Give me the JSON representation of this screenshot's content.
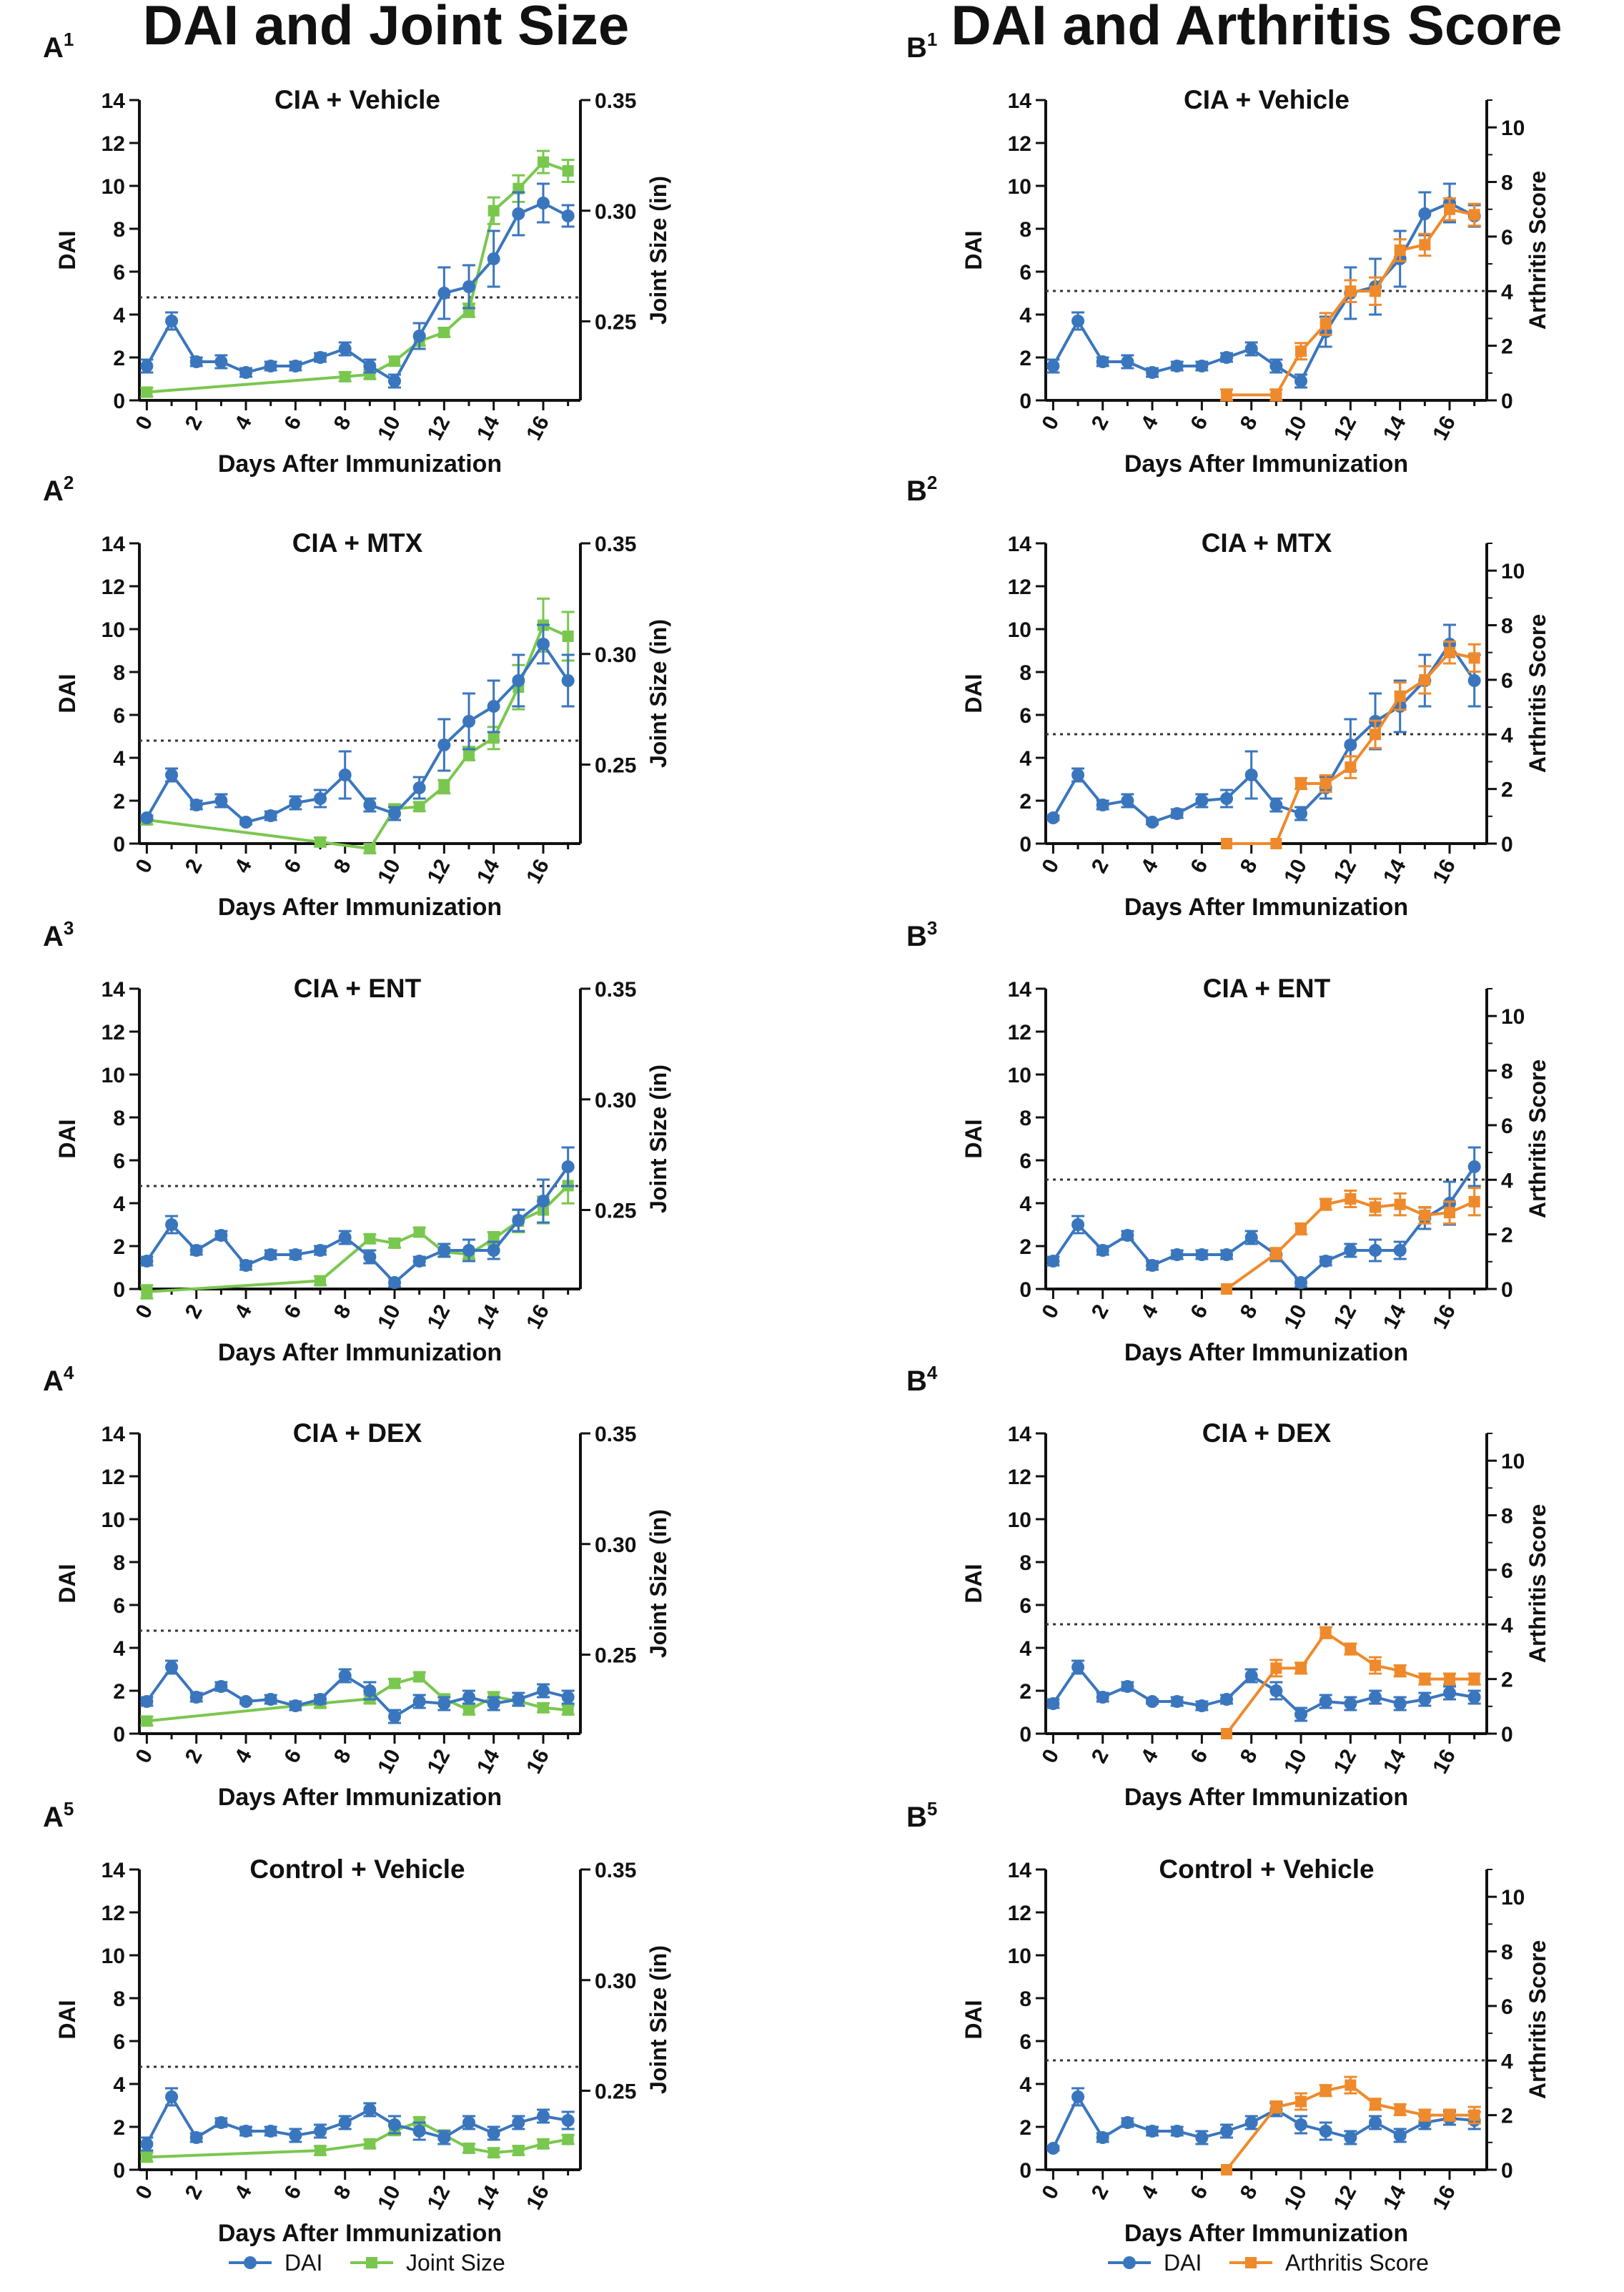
{
  "figure": {
    "left_title": "DAI and Joint Size",
    "right_title": "DAI and Arthritis Score",
    "xlabel": "Days After Immunization",
    "ylabel_left": "DAI",
    "ylabel_right_a": "Joint Size (in)",
    "ylabel_right_b": "Arthritis Score",
    "x_ticks": [
      "0",
      "2",
      "4",
      "6",
      "8",
      "10",
      "12",
      "14",
      "16"
    ],
    "dai_ticks": [
      "0",
      "2",
      "4",
      "6",
      "8",
      "10",
      "12",
      "14"
    ],
    "joint_ticks": [
      "0.25",
      "0.30",
      "0.35"
    ],
    "score_ticks": [
      "0",
      "2",
      "4",
      "6",
      "8",
      "10"
    ],
    "legend_a": [
      "DAI",
      "Joint Size"
    ],
    "legend_b": [
      "DAI",
      "Arthritis Score"
    ],
    "colors": {
      "dai": "#3a76bd",
      "joint": "#7ac74f",
      "score": "#ee8a2c",
      "axis": "#111111"
    }
  },
  "chart_data": [
    {
      "type": "line",
      "panel": "A",
      "label_letter": "A",
      "label_sup": "1",
      "title": "CIA + Vehicle",
      "threshold_dai": 4.8,
      "dai": {
        "x": [
          0,
          1,
          2,
          3,
          4,
          5,
          6,
          7,
          8,
          9,
          10,
          11,
          12,
          13,
          14,
          15,
          16,
          17
        ],
        "y": [
          1.6,
          3.7,
          1.8,
          1.8,
          1.3,
          1.6,
          1.6,
          2.0,
          2.4,
          1.6,
          0.9,
          3.0,
          5.0,
          5.3,
          6.6,
          8.7,
          9.2,
          8.6
        ],
        "err": [
          0.3,
          0.4,
          0.2,
          0.3,
          0.2,
          0.2,
          0.2,
          0.2,
          0.3,
          0.3,
          0.3,
          0.6,
          1.2,
          1.0,
          1.3,
          1.0,
          0.9,
          0.5
        ]
      },
      "second": {
        "kind": "joint",
        "x": [
          0,
          8,
          9,
          10,
          11,
          12,
          13,
          14,
          15,
          16,
          17
        ],
        "y": [
          0.218,
          0.225,
          0.226,
          0.232,
          0.241,
          0.245,
          0.255,
          0.3,
          0.31,
          0.322,
          0.318
        ],
        "err": [
          0.002,
          0.002,
          0.002,
          0.002,
          0.002,
          0.002,
          0.003,
          0.006,
          0.006,
          0.005,
          0.005
        ]
      }
    },
    {
      "type": "line",
      "panel": "A",
      "label_letter": "A",
      "label_sup": "2",
      "title": "CIA + MTX",
      "threshold_dai": 4.8,
      "dai": {
        "x": [
          0,
          1,
          2,
          3,
          4,
          5,
          6,
          7,
          8,
          9,
          10,
          11,
          12,
          13,
          14,
          15,
          16,
          17
        ],
        "y": [
          1.2,
          3.2,
          1.8,
          2.0,
          1.0,
          1.3,
          1.9,
          2.1,
          3.2,
          1.8,
          1.4,
          2.6,
          4.6,
          5.7,
          6.4,
          7.6,
          9.3,
          7.6
        ],
        "err": [
          0.1,
          0.3,
          0.2,
          0.3,
          0.1,
          0.2,
          0.3,
          0.4,
          1.1,
          0.3,
          0.3,
          0.5,
          1.2,
          1.3,
          1.2,
          1.2,
          0.9,
          1.2
        ]
      },
      "second": {
        "kind": "joint",
        "x": [
          0,
          7,
          9,
          10,
          11,
          12,
          13,
          14,
          15,
          16,
          17
        ],
        "y": [
          0.225,
          0.215,
          0.212,
          0.23,
          0.231,
          0.24,
          0.255,
          0.262,
          0.285,
          0.313,
          0.308
        ],
        "err": [
          0.002,
          0.002,
          0.002,
          0.002,
          0.002,
          0.003,
          0.003,
          0.005,
          0.01,
          0.012,
          0.011
        ]
      }
    },
    {
      "type": "line",
      "panel": "A",
      "label_letter": "A",
      "label_sup": "3",
      "title": "CIA + ENT",
      "threshold_dai": 4.8,
      "dai": {
        "x": [
          0,
          1,
          2,
          3,
          4,
          5,
          6,
          7,
          8,
          9,
          10,
          11,
          12,
          13,
          14,
          15,
          16,
          17
        ],
        "y": [
          1.3,
          3.0,
          1.8,
          2.5,
          1.1,
          1.6,
          1.6,
          1.8,
          2.4,
          1.5,
          0.3,
          1.3,
          1.8,
          1.8,
          1.8,
          3.2,
          4.1,
          5.7
        ],
        "err": [
          0.2,
          0.4,
          0.2,
          0.2,
          0.2,
          0.2,
          0.2,
          0.2,
          0.3,
          0.3,
          0.2,
          0.2,
          0.3,
          0.5,
          0.4,
          0.5,
          1.0,
          0.9
        ]
      },
      "second": {
        "kind": "joint",
        "x": [
          0,
          7,
          9,
          10,
          11,
          12,
          13,
          14,
          15,
          16,
          17
        ],
        "y": [
          0.213,
          0.218,
          0.237,
          0.235,
          0.24,
          0.231,
          0.23,
          0.237,
          0.245,
          0.25,
          0.261
        ],
        "err": [
          0.003,
          0.002,
          0.002,
          0.002,
          0.002,
          0.002,
          0.002,
          0.003,
          0.005,
          0.006,
          0.008
        ]
      }
    },
    {
      "type": "line",
      "panel": "A",
      "label_letter": "A",
      "label_sup": "4",
      "title": "CIA + DEX",
      "threshold_dai": 4.8,
      "dai": {
        "x": [
          0,
          1,
          2,
          3,
          4,
          5,
          6,
          7,
          8,
          9,
          10,
          11,
          12,
          13,
          14,
          15,
          16,
          17
        ],
        "y": [
          1.5,
          3.1,
          1.7,
          2.2,
          1.5,
          1.6,
          1.3,
          1.6,
          2.7,
          2.0,
          0.8,
          1.5,
          1.4,
          1.7,
          1.4,
          1.6,
          2.0,
          1.7
        ],
        "err": [
          0.2,
          0.3,
          0.2,
          0.2,
          0.1,
          0.2,
          0.2,
          0.2,
          0.3,
          0.4,
          0.3,
          0.3,
          0.3,
          0.3,
          0.3,
          0.3,
          0.3,
          0.3
        ]
      },
      "second": {
        "kind": "joint",
        "x": [
          0,
          7,
          9,
          10,
          11,
          12,
          13,
          14,
          15,
          16,
          17
        ],
        "y": [
          0.22,
          0.228,
          0.23,
          0.237,
          0.24,
          0.23,
          0.225,
          0.231,
          0.229,
          0.226,
          0.225
        ],
        "err": [
          0.002,
          0.002,
          0.002,
          0.002,
          0.002,
          0.002,
          0.002,
          0.002,
          0.002,
          0.002,
          0.002
        ]
      }
    },
    {
      "type": "line",
      "panel": "A",
      "label_letter": "A",
      "label_sup": "5",
      "title": "Control + Vehicle",
      "threshold_dai": 4.8,
      "dai": {
        "x": [
          0,
          1,
          2,
          3,
          4,
          5,
          6,
          7,
          8,
          9,
          10,
          11,
          12,
          13,
          14,
          15,
          16,
          17
        ],
        "y": [
          1.2,
          3.4,
          1.5,
          2.2,
          1.8,
          1.8,
          1.6,
          1.8,
          2.2,
          2.8,
          2.1,
          1.8,
          1.5,
          2.2,
          1.7,
          2.2,
          2.5,
          2.3
        ],
        "err": [
          0.3,
          0.4,
          0.2,
          0.2,
          0.2,
          0.2,
          0.3,
          0.3,
          0.3,
          0.3,
          0.4,
          0.4,
          0.3,
          0.3,
          0.3,
          0.3,
          0.3,
          0.4
        ]
      },
      "second": {
        "kind": "joint",
        "x": [
          0,
          7,
          9,
          10,
          11,
          12,
          13,
          14,
          15,
          16,
          17
        ],
        "y": [
          0.22,
          0.223,
          0.226,
          0.232,
          0.236,
          0.23,
          0.224,
          0.222,
          0.223,
          0.226,
          0.228
        ],
        "err": [
          0.002,
          0.002,
          0.002,
          0.002,
          0.002,
          0.002,
          0.002,
          0.002,
          0.002,
          0.002,
          0.002
        ]
      }
    },
    {
      "type": "line",
      "panel": "B",
      "label_letter": "B",
      "label_sup": "1",
      "title": "CIA + Vehicle",
      "threshold_dai": 5.1,
      "dai": {
        "x": [
          0,
          1,
          2,
          3,
          4,
          5,
          6,
          7,
          8,
          9,
          10,
          11,
          12,
          13,
          14,
          15,
          16,
          17
        ],
        "y": [
          1.6,
          3.7,
          1.8,
          1.8,
          1.3,
          1.6,
          1.6,
          2.0,
          2.4,
          1.6,
          0.9,
          3.2,
          5.0,
          5.3,
          6.6,
          8.7,
          9.2,
          8.6
        ],
        "err": [
          0.3,
          0.4,
          0.2,
          0.3,
          0.2,
          0.2,
          0.2,
          0.2,
          0.3,
          0.3,
          0.3,
          0.7,
          1.2,
          1.3,
          1.3,
          1.0,
          0.9,
          0.5
        ]
      },
      "second": {
        "kind": "score",
        "x": [
          7,
          9,
          10,
          11,
          12,
          13,
          14,
          15,
          16,
          17
        ],
        "y": [
          0.2,
          0.2,
          1.8,
          2.8,
          4.0,
          4.0,
          5.5,
          5.7,
          7.0,
          6.8
        ],
        "err": [
          0.2,
          0.2,
          0.3,
          0.4,
          0.4,
          0.5,
          0.4,
          0.4,
          0.4,
          0.4
        ]
      }
    },
    {
      "type": "line",
      "panel": "B",
      "label_letter": "B",
      "label_sup": "2",
      "title": "CIA + MTX",
      "threshold_dai": 5.1,
      "dai": {
        "x": [
          0,
          1,
          2,
          3,
          4,
          5,
          6,
          7,
          8,
          9,
          10,
          11,
          12,
          13,
          14,
          15,
          16,
          17
        ],
        "y": [
          1.2,
          3.2,
          1.8,
          2.0,
          1.0,
          1.4,
          2.0,
          2.1,
          3.2,
          1.8,
          1.4,
          2.6,
          4.6,
          5.7,
          6.4,
          7.6,
          9.3,
          7.6
        ],
        "err": [
          0.1,
          0.3,
          0.2,
          0.3,
          0.1,
          0.2,
          0.3,
          0.4,
          1.1,
          0.3,
          0.3,
          0.5,
          1.2,
          1.3,
          1.2,
          1.2,
          0.9,
          1.2
        ]
      },
      "second": {
        "kind": "score",
        "x": [
          7,
          9,
          10,
          11,
          12,
          13,
          14,
          15,
          16,
          17
        ],
        "y": [
          0,
          0,
          2.2,
          2.2,
          2.8,
          4.0,
          5.4,
          6.0,
          7.0,
          6.8
        ],
        "err": [
          0,
          0,
          0.2,
          0.3,
          0.4,
          0.5,
          0.5,
          0.5,
          0.4,
          0.5
        ]
      }
    },
    {
      "type": "line",
      "panel": "B",
      "label_letter": "B",
      "label_sup": "3",
      "title": "CIA + ENT",
      "threshold_dai": 5.1,
      "dai": {
        "x": [
          0,
          1,
          2,
          3,
          4,
          5,
          6,
          7,
          8,
          9,
          10,
          11,
          12,
          13,
          14,
          15,
          16,
          17
        ],
        "y": [
          1.3,
          3.0,
          1.8,
          2.5,
          1.1,
          1.6,
          1.6,
          1.6,
          2.4,
          1.6,
          0.3,
          1.3,
          1.8,
          1.8,
          1.8,
          3.3,
          4.0,
          5.7
        ],
        "err": [
          0.2,
          0.4,
          0.2,
          0.2,
          0.2,
          0.2,
          0.2,
          0.2,
          0.3,
          0.3,
          0.2,
          0.2,
          0.3,
          0.5,
          0.4,
          0.5,
          1.0,
          0.9
        ]
      },
      "second": {
        "kind": "score",
        "x": [
          7,
          9,
          10,
          11,
          12,
          13,
          14,
          15,
          16,
          17
        ],
        "y": [
          0,
          1.3,
          2.2,
          3.1,
          3.3,
          3.0,
          3.1,
          2.7,
          2.8,
          3.2
        ],
        "err": [
          0,
          0.2,
          0.2,
          0.2,
          0.3,
          0.3,
          0.4,
          0.3,
          0.4,
          0.5
        ]
      }
    },
    {
      "type": "line",
      "panel": "B",
      "label_letter": "B",
      "label_sup": "4",
      "title": "CIA + DEX",
      "threshold_dai": 5.1,
      "dai": {
        "x": [
          0,
          1,
          2,
          3,
          4,
          5,
          6,
          7,
          8,
          9,
          10,
          11,
          12,
          13,
          14,
          15,
          16,
          17
        ],
        "y": [
          1.4,
          3.1,
          1.7,
          2.2,
          1.5,
          1.5,
          1.3,
          1.6,
          2.7,
          2.0,
          0.9,
          1.5,
          1.4,
          1.7,
          1.4,
          1.6,
          1.9,
          1.7
        ],
        "err": [
          0.2,
          0.3,
          0.2,
          0.2,
          0.1,
          0.2,
          0.2,
          0.2,
          0.3,
          0.4,
          0.3,
          0.3,
          0.3,
          0.3,
          0.3,
          0.3,
          0.3,
          0.3
        ]
      },
      "second": {
        "kind": "score",
        "x": [
          7,
          9,
          10,
          11,
          12,
          13,
          14,
          15,
          16,
          17
        ],
        "y": [
          0,
          2.4,
          2.4,
          3.7,
          3.1,
          2.5,
          2.3,
          2.0,
          2.0,
          2.0
        ],
        "err": [
          0,
          0.3,
          0.2,
          0.2,
          0.2,
          0.3,
          0.2,
          0.2,
          0.2,
          0.2
        ]
      }
    },
    {
      "type": "line",
      "panel": "B",
      "label_letter": "B",
      "label_sup": "5",
      "title": "Control + Vehicle",
      "threshold_dai": 5.1,
      "dai": {
        "x": [
          0,
          1,
          2,
          3,
          4,
          5,
          6,
          7,
          8,
          9,
          10,
          11,
          12,
          13,
          14,
          15,
          16,
          17
        ],
        "y": [
          1.0,
          3.4,
          1.5,
          2.2,
          1.8,
          1.8,
          1.5,
          1.8,
          2.2,
          2.8,
          2.1,
          1.8,
          1.5,
          2.2,
          1.6,
          2.2,
          2.4,
          2.3
        ],
        "err": [
          0.1,
          0.4,
          0.2,
          0.2,
          0.2,
          0.2,
          0.3,
          0.3,
          0.3,
          0.3,
          0.4,
          0.4,
          0.3,
          0.3,
          0.3,
          0.3,
          0.3,
          0.4
        ]
      },
      "second": {
        "kind": "score",
        "x": [
          7,
          9,
          10,
          11,
          12,
          13,
          14,
          15,
          16,
          17
        ],
        "y": [
          0,
          2.3,
          2.5,
          2.9,
          3.1,
          2.4,
          2.2,
          2.0,
          2.0,
          2.0
        ],
        "err": [
          0,
          0.2,
          0.3,
          0.2,
          0.3,
          0.2,
          0.2,
          0.2,
          0.2,
          0.3
        ]
      }
    }
  ]
}
